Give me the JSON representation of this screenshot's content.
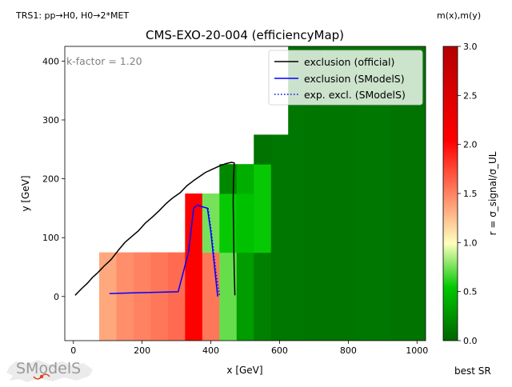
{
  "header": {
    "process_label": "TRS1: pp→H0, H0→2*MET",
    "axes_label": "m(x),m(y)"
  },
  "footer": {
    "best_sr_label": "best SR"
  },
  "logo": {
    "text": "SModelS"
  },
  "chart_data": {
    "type": "heatmap",
    "title": "CMS-EXO-20-004 (efficiencyMap)",
    "xlabel": "x [GeV]",
    "ylabel": "y [GeV]",
    "xlim": [
      -25,
      1025
    ],
    "ylim": [
      -75,
      425
    ],
    "xticks": [
      0,
      200,
      400,
      600,
      800,
      1000
    ],
    "yticks": [
      0,
      100,
      200,
      300,
      400
    ],
    "annotation": "k-factor = 1.20",
    "grid": false,
    "legend_position": "top-right",
    "colorbar": {
      "label": "r = σ_signal/σ_UL",
      "range": [
        0.0,
        3.0
      ],
      "ticks": [
        0.0,
        0.5,
        1.0,
        1.5,
        2.0,
        2.5,
        3.0
      ],
      "colors": [
        "#006400",
        "#00c800",
        "#ffffbe",
        "#ff0000",
        "#b40000"
      ]
    },
    "cells": [
      {
        "x0": 75,
        "x1": 125,
        "y0": -75,
        "y1": 75,
        "r": 1.35
      },
      {
        "x0": 125,
        "x1": 175,
        "y0": -75,
        "y1": 75,
        "r": 1.45
      },
      {
        "x0": 175,
        "x1": 225,
        "y0": -75,
        "y1": 75,
        "r": 1.5
      },
      {
        "x0": 225,
        "x1": 275,
        "y0": -75,
        "y1": 75,
        "r": 1.55
      },
      {
        "x0": 275,
        "x1": 325,
        "y0": -75,
        "y1": 75,
        "r": 1.6
      },
      {
        "x0": 325,
        "x1": 375,
        "y0": -75,
        "y1": 175,
        "r": 2.05
      },
      {
        "x0": 375,
        "x1": 425,
        "y0": -75,
        "y1": 75,
        "r": 1.55
      },
      {
        "x0": 375,
        "x1": 425,
        "y0": 75,
        "y1": 175,
        "r": 0.75
      },
      {
        "x0": 425,
        "x1": 475,
        "y0": -75,
        "y1": 75,
        "r": 0.72
      },
      {
        "x0": 425,
        "x1": 475,
        "y0": 75,
        "y1": 175,
        "r": 0.55
      },
      {
        "x0": 425,
        "x1": 475,
        "y0": 175,
        "y1": 225,
        "r": 0.2
      },
      {
        "x0": 475,
        "x1": 525,
        "y0": -75,
        "y1": 75,
        "r": 0.3
      },
      {
        "x0": 475,
        "x1": 525,
        "y0": 75,
        "y1": 175,
        "r": 0.5
      },
      {
        "x0": 475,
        "x1": 525,
        "y0": 175,
        "y1": 225,
        "r": 0.4
      },
      {
        "x0": 525,
        "x1": 575,
        "y0": -75,
        "y1": 75,
        "r": 0.15
      },
      {
        "x0": 525,
        "x1": 575,
        "y0": 75,
        "y1": 225,
        "r": 0.55
      },
      {
        "x0": 525,
        "x1": 575,
        "y0": 225,
        "y1": 275,
        "r": 0.08
      },
      {
        "x0": 575,
        "x1": 625,
        "y0": -75,
        "y1": 275,
        "r": 0.1
      },
      {
        "x0": 625,
        "x1": 675,
        "y0": -75,
        "y1": 325,
        "r": 0.1
      },
      {
        "x0": 675,
        "x1": 725,
        "y0": -75,
        "y1": 325,
        "r": 0.09
      },
      {
        "x0": 625,
        "x1": 725,
        "y0": 325,
        "y1": 425,
        "r": 0.06
      },
      {
        "x0": 725,
        "x1": 825,
        "y0": -75,
        "y1": 425,
        "r": 0.09
      },
      {
        "x0": 825,
        "x1": 925,
        "y0": -75,
        "y1": 425,
        "r": 0.1
      },
      {
        "x0": 925,
        "x1": 1025,
        "y0": -75,
        "y1": 425,
        "r": 0.08
      }
    ],
    "series": [
      {
        "name": "exclusion (official)",
        "color": "#000000",
        "style": "solid",
        "points": [
          [
            5,
            2
          ],
          [
            15,
            8
          ],
          [
            25,
            14
          ],
          [
            40,
            22
          ],
          [
            55,
            32
          ],
          [
            70,
            40
          ],
          [
            90,
            52
          ],
          [
            110,
            63
          ],
          [
            130,
            78
          ],
          [
            150,
            92
          ],
          [
            170,
            102
          ],
          [
            190,
            112
          ],
          [
            210,
            125
          ],
          [
            230,
            135
          ],
          [
            250,
            146
          ],
          [
            270,
            158
          ],
          [
            290,
            168
          ],
          [
            310,
            176
          ],
          [
            330,
            188
          ],
          [
            350,
            197
          ],
          [
            370,
            205
          ],
          [
            385,
            211
          ],
          [
            400,
            215
          ],
          [
            415,
            219
          ],
          [
            430,
            223
          ],
          [
            445,
            226
          ],
          [
            460,
            228
          ],
          [
            468,
            227
          ],
          [
            466,
            200
          ],
          [
            465,
            160
          ],
          [
            466,
            120
          ],
          [
            467,
            80
          ],
          [
            468,
            40
          ],
          [
            470,
            2
          ]
        ]
      },
      {
        "name": "exclusion (SModelS)",
        "color": "#0000ff",
        "style": "solid",
        "points": [
          [
            105,
            5
          ],
          [
            165,
            6
          ],
          [
            235,
            7
          ],
          [
            305,
            8
          ],
          [
            335,
            75
          ],
          [
            350,
            150
          ],
          [
            360,
            155
          ],
          [
            390,
            150
          ],
          [
            400,
            110
          ],
          [
            420,
            0
          ]
        ]
      },
      {
        "name": "exp. excl. (SModelS)",
        "color": "#0000ff",
        "style": "dotted",
        "points": [
          [
            392,
            150
          ],
          [
            402,
            108
          ],
          [
            415,
            40
          ],
          [
            425,
            2
          ]
        ]
      }
    ]
  }
}
